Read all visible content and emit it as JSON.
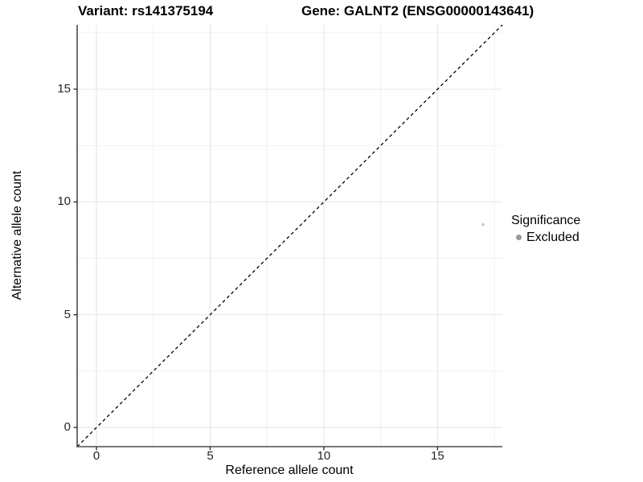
{
  "chart_data": {
    "type": "scatter",
    "titles": {
      "variant": "Variant: rs141375194",
      "gene": "Gene: GALNT2 (ENSG00000143641)"
    },
    "xlabel": "Reference allele count",
    "ylabel": "Alternative allele count",
    "xlim": [
      -0.85,
      17.85
    ],
    "ylim": [
      -0.85,
      17.85
    ],
    "xticks": [
      0,
      5,
      10,
      15
    ],
    "yticks": [
      0,
      5,
      10,
      15
    ],
    "xminor": [
      2.5,
      7.5,
      12.5,
      17.5
    ],
    "yminor": [
      2.5,
      7.5,
      12.5,
      17.5
    ],
    "grid": "major+minor",
    "identity_line": {
      "slope": 1,
      "intercept": 0,
      "style": "dashed",
      "color": "#000000"
    },
    "series": [
      {
        "name": "Excluded",
        "color": "#c8c8c8",
        "marker": "circle",
        "points": [
          {
            "x": 17,
            "y": 9
          }
        ]
      }
    ],
    "legend": {
      "title": "Significance",
      "position": "right",
      "items": [
        {
          "label": "Excluded",
          "color": "#999999",
          "marker": "circle"
        }
      ]
    }
  }
}
